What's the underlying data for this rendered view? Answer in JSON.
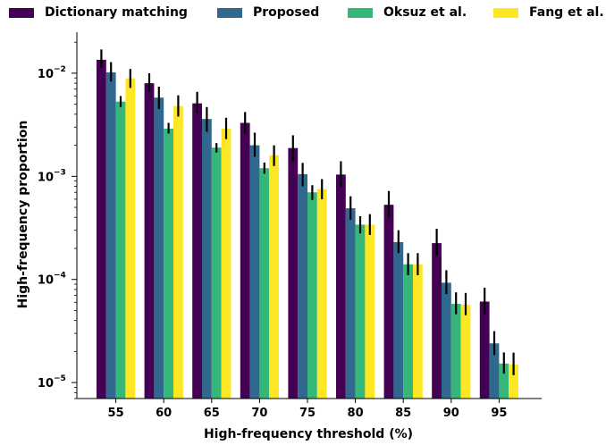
{
  "chart_data": {
    "type": "bar",
    "categories": [
      "55",
      "60",
      "65",
      "70",
      "75",
      "80",
      "85",
      "90",
      "95"
    ],
    "xlabel": "High-frequency threshold (%)",
    "ylabel": "High-frequency proportion",
    "yscale": "log",
    "ylim": [
      7e-06,
      0.025
    ],
    "y_ticks": [
      {
        "value": 1e-05,
        "base": "10",
        "exp": "−5"
      },
      {
        "value": 0.0001,
        "base": "10",
        "exp": "−4"
      },
      {
        "value": 0.001,
        "base": "10",
        "exp": "−3"
      },
      {
        "value": 0.01,
        "base": "10",
        "exp": "−2"
      }
    ],
    "legend_position": "top",
    "grid": false,
    "error_bars": true,
    "series": [
      {
        "name": "Dictionary matching",
        "color": "#440154",
        "values": [
          0.0135,
          0.008,
          0.0051,
          0.0033,
          0.00188,
          0.00104,
          0.00053,
          0.000225,
          6.1e-05
        ],
        "err_low": [
          0.0112,
          0.0066,
          0.0041,
          0.0026,
          0.0014,
          0.00078,
          0.0004,
          0.00017,
          4.6e-05
        ],
        "err_high": [
          0.017,
          0.01,
          0.0066,
          0.0042,
          0.0025,
          0.0014,
          0.00072,
          0.00031,
          8.3e-05
        ]
      },
      {
        "name": "Proposed",
        "color": "#31688e",
        "values": [
          0.0102,
          0.0058,
          0.0036,
          0.002,
          0.00105,
          0.00049,
          0.00023,
          9.3e-05,
          2.4e-05
        ],
        "err_low": [
          0.0083,
          0.0045,
          0.0027,
          0.00155,
          0.0008,
          0.00038,
          0.00018,
          7.2e-05,
          1.85e-05
        ],
        "err_high": [
          0.0128,
          0.0074,
          0.0047,
          0.00265,
          0.00135,
          0.00064,
          0.0003,
          0.000123,
          3.15e-05
        ]
      },
      {
        "name": "Oksuz et al.",
        "color": "#35b779",
        "values": [
          0.0053,
          0.0029,
          0.0019,
          0.0012,
          0.0007,
          0.00034,
          0.00014,
          5.8e-05,
          1.53e-05
        ],
        "err_low": [
          0.0047,
          0.0026,
          0.0017,
          0.00106,
          0.00059,
          0.00028,
          0.00011,
          4.6e-05,
          1.22e-05
        ],
        "err_high": [
          0.006,
          0.0033,
          0.0021,
          0.00136,
          0.00082,
          0.00041,
          0.00018,
          7.5e-05,
          1.96e-05
        ]
      },
      {
        "name": "Fang et al.",
        "color": "#fde725",
        "values": [
          0.0089,
          0.0048,
          0.0029,
          0.0016,
          0.00075,
          0.00034,
          0.00014,
          5.7e-05,
          1.5e-05
        ],
        "err_low": [
          0.0072,
          0.0038,
          0.0023,
          0.00126,
          0.0006,
          0.00027,
          0.00011,
          4.5e-05,
          1.18e-05
        ],
        "err_high": [
          0.011,
          0.0061,
          0.0037,
          0.002,
          0.00094,
          0.00043,
          0.00018,
          7.4e-05,
          1.95e-05
        ]
      }
    ]
  }
}
